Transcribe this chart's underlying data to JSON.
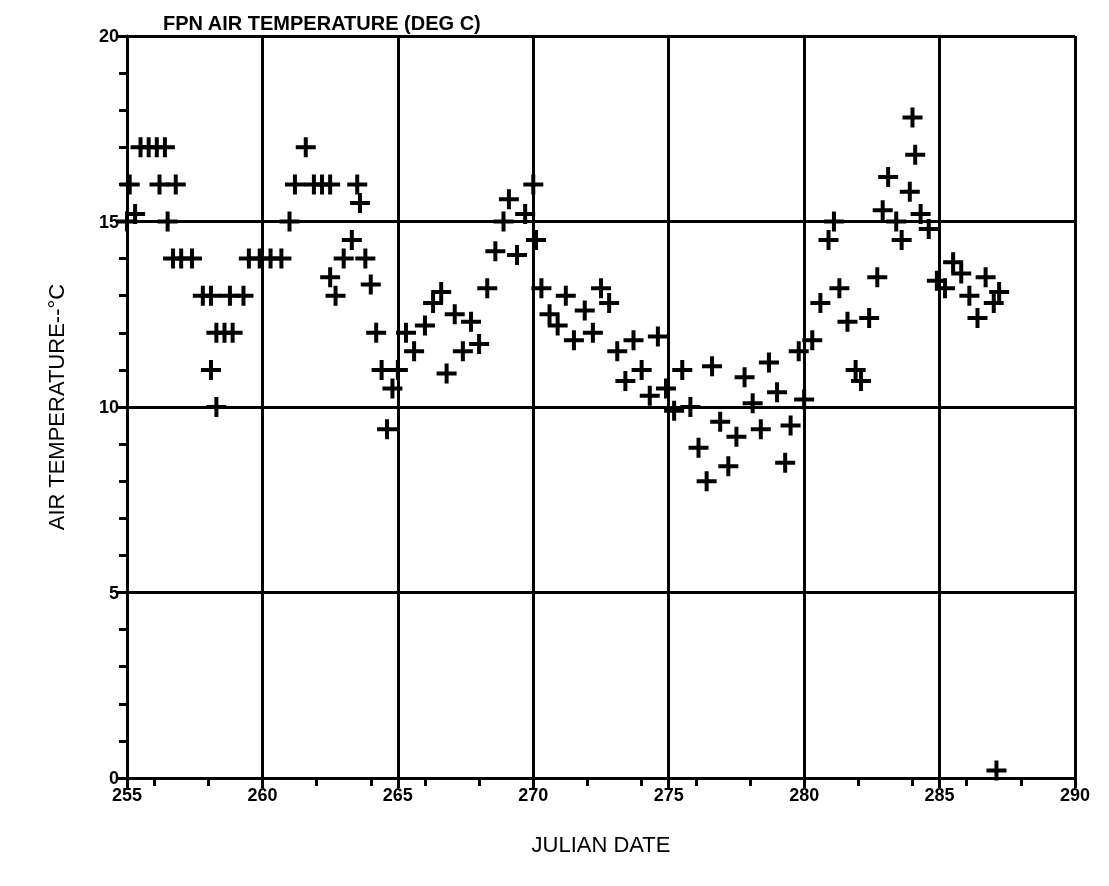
{
  "chart_data": {
    "type": "scatter",
    "title": "FPN AIR TEMPERATURE (DEG C)",
    "xlabel": "JULIAN DATE",
    "ylabel": "AIR TEMPERATURE--°C",
    "xlim": [
      255,
      290
    ],
    "xticks": [
      255,
      260,
      265,
      270,
      275,
      280,
      285,
      290
    ],
    "ylim": [
      0,
      20
    ],
    "yticks": [
      0,
      5,
      10,
      15,
      20
    ],
    "grid": true,
    "marker": "cross",
    "series": [
      {
        "color": "#000000",
        "x": [
          255.0,
          255.1,
          255.3,
          255.5,
          255.8,
          256.1,
          256.4,
          256.2,
          256.8,
          256.5,
          256.7,
          257.0,
          257.4,
          257.8,
          258.1,
          258.3,
          258.6,
          258.9,
          258.8,
          258.1,
          258.3,
          259.3,
          259.5,
          259.9,
          260.3,
          260.7,
          261.0,
          261.2,
          261.6,
          261.9,
          262.2,
          262.5,
          262.5,
          262.7,
          263.0,
          263.3,
          263.5,
          263.6,
          263.8,
          264.0,
          264.2,
          264.4,
          264.6,
          264.8,
          265.0,
          265.3,
          265.6,
          266.0,
          266.3,
          266.6,
          266.8,
          267.1,
          267.4,
          267.7,
          268.0,
          268.3,
          268.6,
          268.9,
          269.1,
          269.4,
          269.7,
          270.0,
          270.1,
          270.3,
          270.6,
          270.9,
          271.2,
          271.5,
          271.9,
          272.2,
          272.5,
          272.8,
          273.1,
          273.4,
          273.7,
          274.0,
          274.3,
          274.6,
          274.9,
          275.2,
          275.5,
          275.8,
          276.1,
          276.4,
          276.6,
          276.9,
          277.2,
          277.5,
          277.8,
          278.1,
          278.4,
          278.7,
          279.0,
          279.3,
          279.5,
          279.8,
          280.0,
          280.3,
          280.6,
          280.9,
          281.1,
          281.3,
          281.6,
          281.9,
          282.1,
          282.4,
          282.7,
          282.9,
          283.1,
          283.4,
          283.6,
          283.9,
          284.0,
          284.1,
          284.3,
          284.6,
          284.9,
          285.2,
          285.5,
          285.8,
          286.1,
          286.4,
          286.7,
          287.0,
          287.2,
          287.1
        ],
        "values": [
          15,
          16,
          15.2,
          17,
          17,
          17,
          17,
          16,
          16,
          15,
          14,
          14,
          14,
          13,
          13,
          12,
          12,
          12,
          13,
          11,
          10,
          13,
          14,
          14,
          14,
          14,
          15,
          16,
          17,
          16,
          16,
          16,
          13.5,
          13,
          14,
          14.5,
          16,
          15.5,
          14,
          13.3,
          12,
          11,
          9.4,
          10.5,
          11,
          12,
          11.5,
          12.2,
          12.8,
          13.1,
          10.9,
          12.5,
          11.5,
          12.3,
          11.7,
          13.2,
          14.2,
          15,
          15.6,
          14.1,
          15.2,
          16,
          14.5,
          13.2,
          12.5,
          12.2,
          13,
          11.8,
          12.6,
          12,
          13.2,
          12.8,
          11.5,
          10.7,
          11.8,
          11,
          10.3,
          11.9,
          10.5,
          9.9,
          11,
          10,
          8.9,
          8,
          11.1,
          9.6,
          8.4,
          9.2,
          10.8,
          10.1,
          9.4,
          11.2,
          10.4,
          8.5,
          9.5,
          11.5,
          10.2,
          11.8,
          12.8,
          14.5,
          15,
          13.2,
          12.3,
          11,
          10.7,
          12.4,
          13.5,
          15.3,
          16.2,
          15,
          14.5,
          15.8,
          17.8,
          16.8,
          15.2,
          14.8,
          13.4,
          13.2,
          13.9,
          13.6,
          13,
          12.4,
          13.5,
          12.8,
          13.1,
          0.2
        ]
      }
    ]
  }
}
